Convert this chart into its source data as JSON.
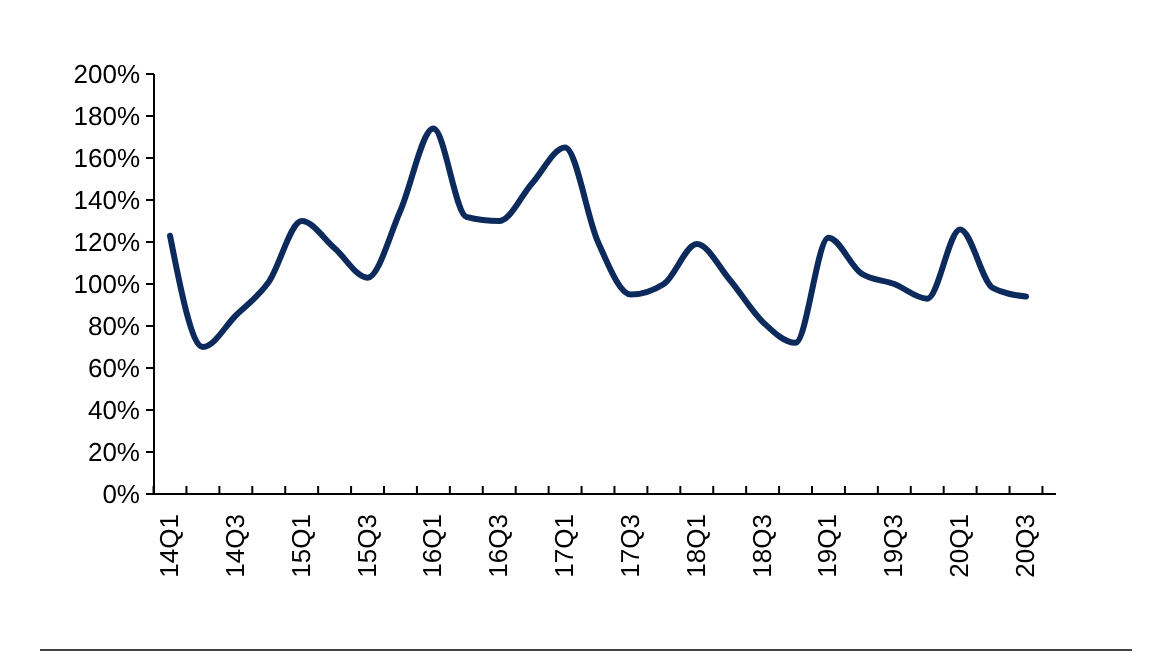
{
  "chart_data": {
    "type": "line",
    "categories": [
      "14Q1",
      null,
      "14Q3",
      null,
      "15Q1",
      null,
      "15Q3",
      null,
      "16Q1",
      null,
      "16Q3",
      null,
      "17Q1",
      null,
      "17Q3",
      null,
      "18Q1",
      null,
      "18Q3",
      null,
      "19Q1",
      null,
      "19Q3",
      null,
      "20Q1",
      null,
      "20Q3"
    ],
    "series": [
      {
        "color": "#0d2a5c",
        "values": [
          123,
          70,
          85,
          101,
          130,
          117,
          103,
          135,
          174,
          132,
          130,
          148,
          165,
          120,
          95,
          100,
          119,
          102,
          82,
          72,
          122,
          105,
          100,
          93,
          126,
          98,
          94
        ]
      }
    ],
    "ylim": [
      0,
      200
    ],
    "yticks": [
      {
        "value": 0,
        "label": "0%"
      },
      {
        "value": 20,
        "label": "20%"
      },
      {
        "value": 40,
        "label": "40%"
      },
      {
        "value": 60,
        "label": "60%"
      },
      {
        "value": 80,
        "label": "80%"
      },
      {
        "value": 100,
        "label": "100%"
      },
      {
        "value": 120,
        "label": "120%"
      },
      {
        "value": 140,
        "label": "140%"
      },
      {
        "value": 160,
        "label": "160%"
      },
      {
        "value": 180,
        "label": "180%"
      },
      {
        "value": 200,
        "label": "200%"
      }
    ],
    "grid": false,
    "marker": "none",
    "line_style": "solid"
  }
}
